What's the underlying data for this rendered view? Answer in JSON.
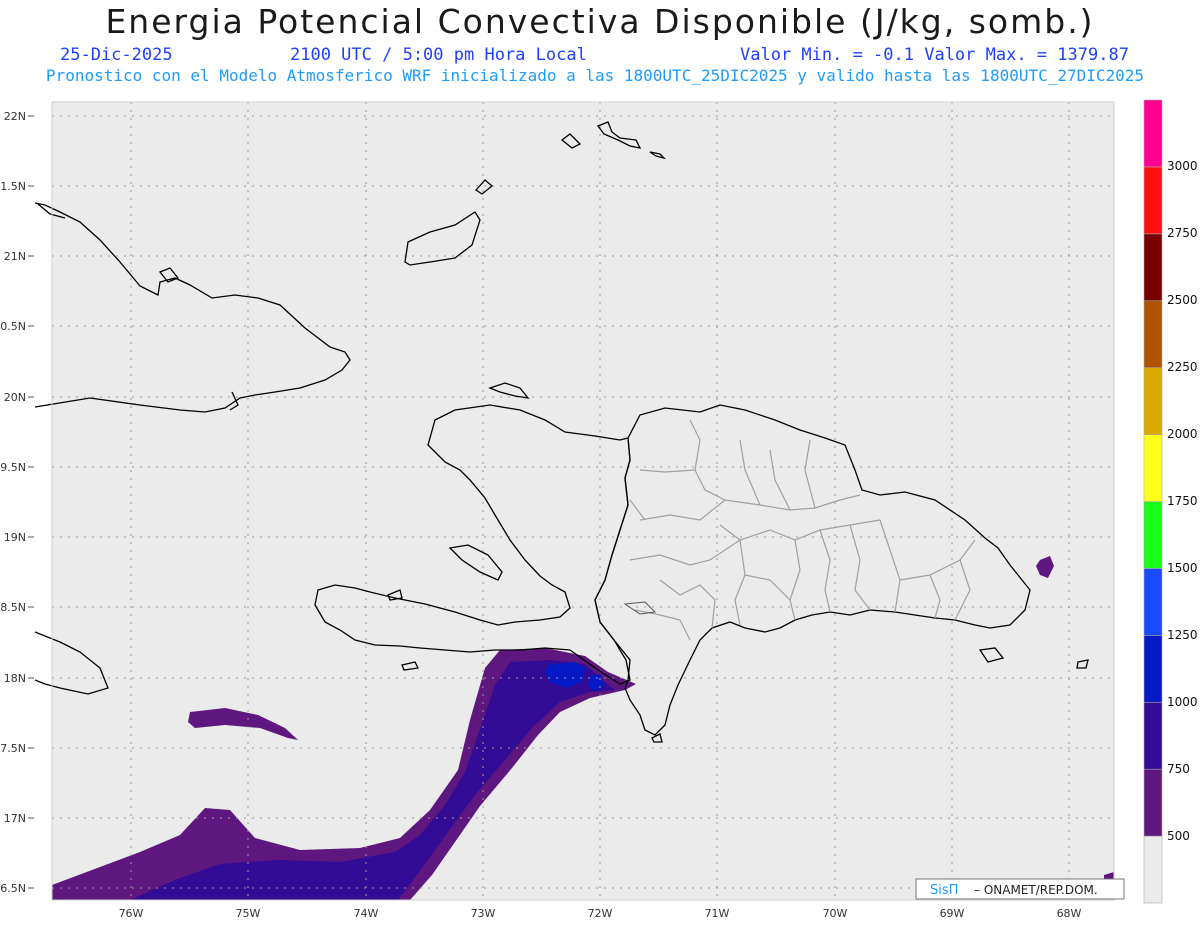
{
  "title": "Energia Potencial Convectiva Disponible (J/kg, somb.)",
  "subtitle": {
    "date": "25-Dic-2025",
    "time": "2100 UTC / 5:00 pm Hora Local",
    "minmax": "Valor Min. = -0.1  Valor Max. = 1379.87"
  },
  "description": "Pronostico con el Modelo Atmosferico WRF inicializado a las 1800UTC_25DIC2025 y valido hasta las  1800UTC_27DIC2025",
  "lat_ticks": [
    "22N",
    "1.5N",
    "21N",
    "0.5N",
    "20N",
    "9.5N",
    "19N",
    "8.5N",
    "18N",
    "7.5N",
    "17N",
    "6.5N"
  ],
  "lon_ticks": [
    "76W",
    "75W",
    "74W",
    "73W",
    "72W",
    "71W",
    "70W",
    "69W",
    "68W"
  ],
  "colorbar": {
    "labels": [
      "500",
      "750",
      "1000",
      "1250",
      "1500",
      "1750",
      "2000",
      "2250",
      "2500",
      "2750",
      "3000"
    ],
    "colors": [
      "#ebebeb",
      "#5e177f",
      "#320c95",
      "#0519c6",
      "#1a4aff",
      "#19ff1a",
      "#ffff19",
      "#d9a900",
      "#b05200",
      "#770000",
      "#ff1010",
      "#ff0090"
    ]
  },
  "credit": {
    "brand": "SisΠ",
    "org": "– ONAMET/REP.DOM."
  }
}
